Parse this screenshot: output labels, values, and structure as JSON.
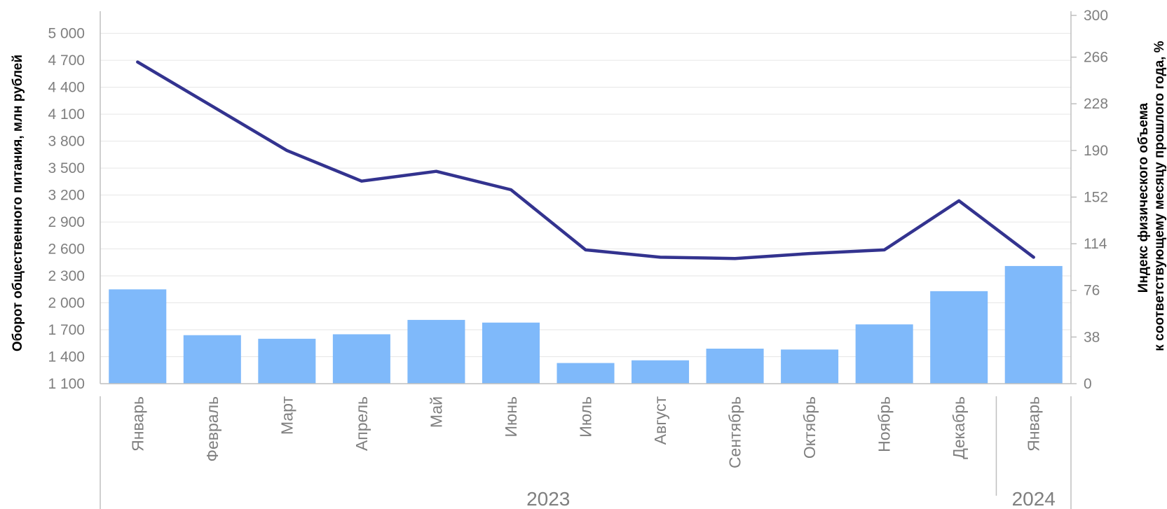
{
  "chart_data": {
    "type": "bar",
    "categories": [
      "Январь",
      "Февраль",
      "Март",
      "Апрель",
      "Май",
      "Июнь",
      "Июль",
      "Август",
      "Сентябрь",
      "Октябрь",
      "Ноябрь",
      "Декабрь",
      "Январь"
    ],
    "groups": [
      {
        "label": "2023",
        "count": 12
      },
      {
        "label": "2024",
        "count": 1
      }
    ],
    "series": [
      {
        "type": "bar",
        "axis": "left",
        "values": [
          2150,
          1640,
          1600,
          1650,
          1810,
          1780,
          1330,
          1360,
          1490,
          1480,
          1760,
          2130,
          2410
        ]
      },
      {
        "type": "line",
        "axis": "right",
        "values": [
          262,
          226,
          190,
          165,
          173,
          158,
          109,
          103,
          102,
          106,
          109,
          149,
          103
        ]
      }
    ],
    "ylabel": "Оборот общественного питания, млн рублей",
    "y2label": [
      "Индекс физического объема",
      "к соответствующему месяцу прошлого года, %"
    ],
    "ylim": [
      1100,
      5200
    ],
    "y2lim": [
      0,
      300
    ],
    "yticks": [
      1100,
      1400,
      1700,
      2000,
      2300,
      2600,
      2900,
      3200,
      3500,
      3800,
      4100,
      4400,
      4700,
      5000
    ],
    "ytick_labels": [
      "1 100",
      "1 400",
      "1 700",
      "2 000",
      "2 300",
      "2 600",
      "2 900",
      "3 200",
      "3 500",
      "3 800",
      "4 100",
      "4 400",
      "4 700",
      "5 000"
    ],
    "y2ticks": [
      0,
      38,
      76,
      114,
      152,
      190,
      228,
      266,
      300
    ],
    "grid": true,
    "colors": {
      "bar": "#7fb9fa",
      "line": "#33338f",
      "grid": "#e6e6e6",
      "axis": "#bfbfbf",
      "text": "#7f7f7f"
    }
  }
}
